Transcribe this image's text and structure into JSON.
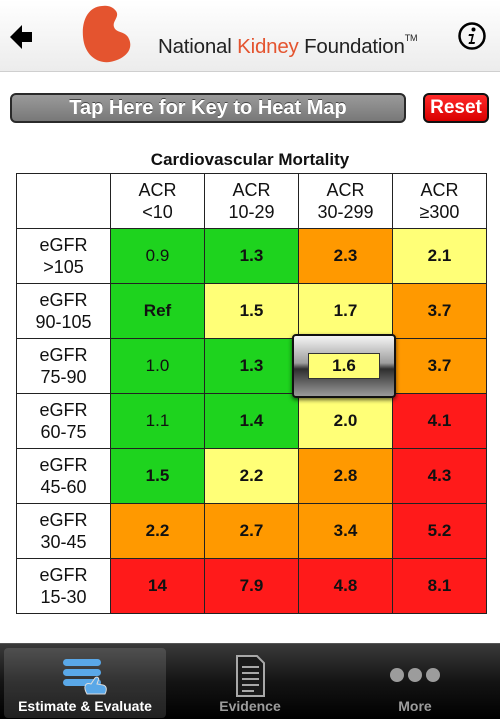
{
  "header": {
    "brand_prefix": "National",
    "brand_kidney": "Kidney",
    "brand_suffix": "Foundation",
    "trademark": "TM",
    "logo_color": "#e4542f"
  },
  "controls": {
    "key_label": "Tap Here for Key to Heat Map",
    "reset_label": "Reset"
  },
  "table": {
    "title": "Cardiovascular Mortality",
    "columns": [
      {
        "line1": "ACR",
        "line2": "<10"
      },
      {
        "line1": "ACR",
        "line2": "10-29"
      },
      {
        "line1": "ACR",
        "line2": "30-299"
      },
      {
        "line1": "ACR",
        "line2": "≥300"
      }
    ],
    "rows": [
      {
        "line1": "eGFR",
        "line2": ">105",
        "values": [
          "0.9",
          "1.3",
          "2.3",
          "2.1"
        ]
      },
      {
        "line1": "eGFR",
        "line2": "90-105",
        "values": [
          "Ref",
          "1.5",
          "1.7",
          "3.7"
        ]
      },
      {
        "line1": "eGFR",
        "line2": "75-90",
        "values": [
          "1.0",
          "1.3",
          "1.6",
          "3.7"
        ]
      },
      {
        "line1": "eGFR",
        "line2": "60-75",
        "values": [
          "1.1",
          "1.4",
          "2.0",
          "4.1"
        ]
      },
      {
        "line1": "eGFR",
        "line2": "45-60",
        "values": [
          "1.5",
          "2.2",
          "2.8",
          "4.3"
        ]
      },
      {
        "line1": "eGFR",
        "line2": "30-45",
        "values": [
          "2.2",
          "2.7",
          "3.4",
          "5.2"
        ]
      },
      {
        "line1": "eGFR",
        "line2": "15-30",
        "values": [
          "14",
          "7.9",
          "4.8",
          "8.1"
        ]
      }
    ],
    "colors": {
      "green": "#1ed31e",
      "yellow": "#ffff77",
      "orange": "#ff9900",
      "red": "#ff1a1a"
    },
    "selected_value": "1.6"
  },
  "tabs": [
    {
      "label": "Estimate & Evaluate",
      "icon": "sliders-hand-icon",
      "active": true
    },
    {
      "label": "Evidence",
      "icon": "document-icon",
      "active": false
    },
    {
      "label": "More",
      "icon": "more-dots-icon",
      "active": false
    }
  ]
}
